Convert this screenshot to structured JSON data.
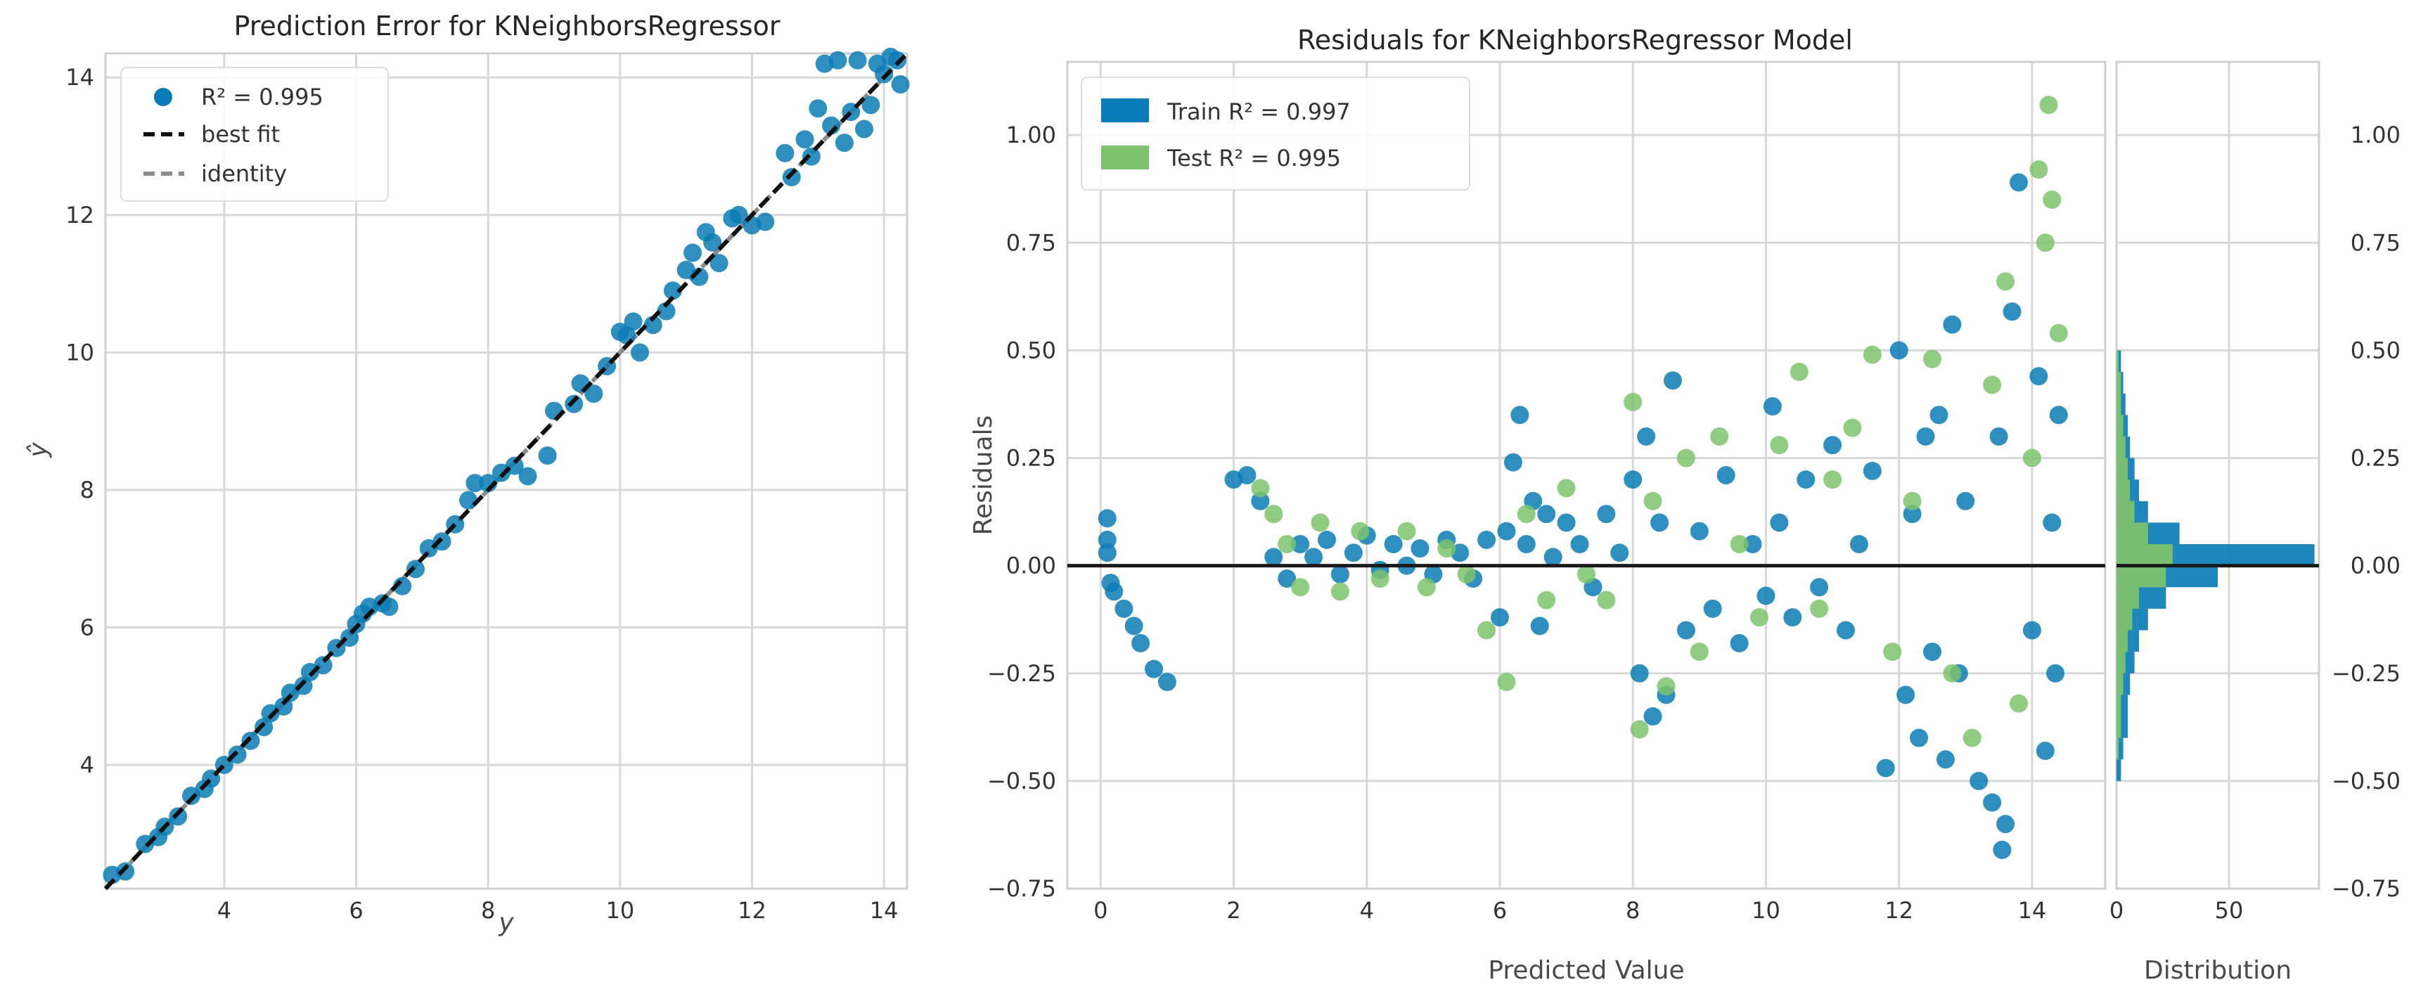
{
  "colors": {
    "train": "#0a7cb5",
    "test": "#7dc36b",
    "best_fit": "#111111",
    "identity": "#8c8c8c",
    "zero_line": "#1a1a1a"
  },
  "chart_data": [
    {
      "type": "scatter",
      "title": "Prediction Error for KNeighborsRegressor",
      "xlabel": "y",
      "ylabel": "ŷ",
      "xlim": [
        2.2,
        14.35
      ],
      "ylim": [
        2.2,
        14.35
      ],
      "xticks": [
        "4",
        "6",
        "8",
        "10",
        "12",
        "14"
      ],
      "yticks": [
        "4",
        "6",
        "8",
        "10",
        "12",
        "14"
      ],
      "legend": {
        "placement": "top-left",
        "points_label": "R² = 0.995",
        "best_fit_label": "best fit",
        "identity_label": "identity"
      },
      "r2": 0.995,
      "points": [
        [
          2.3,
          2.4
        ],
        [
          2.5,
          2.45
        ],
        [
          2.8,
          2.85
        ],
        [
          3.0,
          2.95
        ],
        [
          3.1,
          3.1
        ],
        [
          3.3,
          3.25
        ],
        [
          3.5,
          3.55
        ],
        [
          3.7,
          3.65
        ],
        [
          3.8,
          3.8
        ],
        [
          4.0,
          4.0
        ],
        [
          4.2,
          4.15
        ],
        [
          4.4,
          4.35
        ],
        [
          4.6,
          4.55
        ],
        [
          4.7,
          4.75
        ],
        [
          4.9,
          4.85
        ],
        [
          5.0,
          5.05
        ],
        [
          5.2,
          5.15
        ],
        [
          5.3,
          5.35
        ],
        [
          5.5,
          5.45
        ],
        [
          5.7,
          5.7
        ],
        [
          5.9,
          5.85
        ],
        [
          6.0,
          6.05
        ],
        [
          6.1,
          6.2
        ],
        [
          6.2,
          6.3
        ],
        [
          6.4,
          6.35
        ],
        [
          6.5,
          6.3
        ],
        [
          6.7,
          6.6
        ],
        [
          6.9,
          6.85
        ],
        [
          7.1,
          7.15
        ],
        [
          7.3,
          7.25
        ],
        [
          7.5,
          7.5
        ],
        [
          7.7,
          7.85
        ],
        [
          7.8,
          8.1
        ],
        [
          8.0,
          8.1
        ],
        [
          8.2,
          8.25
        ],
        [
          8.4,
          8.35
        ],
        [
          8.6,
          8.2
        ],
        [
          8.9,
          8.5
        ],
        [
          9.0,
          9.15
        ],
        [
          9.3,
          9.25
        ],
        [
          9.4,
          9.55
        ],
        [
          9.6,
          9.4
        ],
        [
          9.8,
          9.8
        ],
        [
          10.0,
          10.3
        ],
        [
          10.1,
          10.25
        ],
        [
          10.2,
          10.45
        ],
        [
          10.3,
          10.0
        ],
        [
          10.5,
          10.4
        ],
        [
          10.7,
          10.6
        ],
        [
          10.8,
          10.9
        ],
        [
          11.0,
          11.2
        ],
        [
          11.1,
          11.45
        ],
        [
          11.2,
          11.1
        ],
        [
          11.3,
          11.75
        ],
        [
          11.4,
          11.6
        ],
        [
          11.5,
          11.3
        ],
        [
          11.7,
          11.95
        ],
        [
          11.8,
          12.0
        ],
        [
          12.0,
          11.85
        ],
        [
          12.2,
          11.9
        ],
        [
          12.5,
          12.9
        ],
        [
          12.6,
          12.55
        ],
        [
          12.8,
          13.1
        ],
        [
          12.9,
          12.85
        ],
        [
          13.0,
          13.55
        ],
        [
          13.1,
          14.2
        ],
        [
          13.2,
          13.3
        ],
        [
          13.3,
          14.25
        ],
        [
          13.4,
          13.05
        ],
        [
          13.5,
          13.5
        ],
        [
          13.6,
          14.25
        ],
        [
          13.7,
          13.25
        ],
        [
          13.8,
          13.6
        ],
        [
          13.9,
          14.2
        ],
        [
          14.0,
          14.05
        ],
        [
          14.1,
          14.3
        ],
        [
          14.2,
          14.25
        ],
        [
          14.25,
          13.9
        ]
      ]
    },
    {
      "type": "scatter",
      "title": "Residuals for KNeighborsRegressor Model",
      "xlabel": "Predicted Value",
      "ylabel": "Residuals",
      "xlim": [
        -0.5,
        15.1
      ],
      "ylim": [
        -0.75,
        1.17
      ],
      "xticks": [
        "0",
        "2",
        "4",
        "6",
        "8",
        "10",
        "12",
        "14"
      ],
      "yticks": [
        "1.00",
        "0.75",
        "0.50",
        "0.25",
        "0.00",
        "−0.25",
        "−0.50",
        "−0.75"
      ],
      "legend": {
        "placement": "top-left",
        "train_label": "Train R² = 0.997",
        "test_label": "Test R² = 0.995"
      },
      "series": [
        {
          "name": "Train",
          "r2": 0.997,
          "points": [
            [
              0.1,
              0.11
            ],
            [
              0.1,
              0.06
            ],
            [
              0.1,
              0.03
            ],
            [
              0.15,
              -0.04
            ],
            [
              0.2,
              -0.06
            ],
            [
              0.35,
              -0.1
            ],
            [
              0.5,
              -0.14
            ],
            [
              0.6,
              -0.18
            ],
            [
              0.8,
              -0.24
            ],
            [
              1.0,
              -0.27
            ],
            [
              2.0,
              0.2
            ],
            [
              2.2,
              0.21
            ],
            [
              2.4,
              0.15
            ],
            [
              2.6,
              0.02
            ],
            [
              2.8,
              -0.03
            ],
            [
              3.0,
              0.05
            ],
            [
              3.2,
              0.02
            ],
            [
              3.4,
              0.06
            ],
            [
              3.6,
              -0.02
            ],
            [
              3.8,
              0.03
            ],
            [
              4.0,
              0.07
            ],
            [
              4.2,
              -0.01
            ],
            [
              4.4,
              0.05
            ],
            [
              4.6,
              0.0
            ],
            [
              4.8,
              0.04
            ],
            [
              5.0,
              -0.02
            ],
            [
              5.2,
              0.06
            ],
            [
              5.4,
              0.03
            ],
            [
              5.6,
              -0.03
            ],
            [
              5.8,
              0.06
            ],
            [
              6.0,
              -0.12
            ],
            [
              6.1,
              0.08
            ],
            [
              6.2,
              0.24
            ],
            [
              6.3,
              0.35
            ],
            [
              6.4,
              0.05
            ],
            [
              6.5,
              0.15
            ],
            [
              6.6,
              -0.14
            ],
            [
              6.7,
              0.12
            ],
            [
              6.8,
              0.02
            ],
            [
              7.0,
              0.1
            ],
            [
              7.2,
              0.05
            ],
            [
              7.4,
              -0.05
            ],
            [
              7.6,
              0.12
            ],
            [
              7.8,
              0.03
            ],
            [
              8.0,
              0.2
            ],
            [
              8.1,
              -0.25
            ],
            [
              8.2,
              0.3
            ],
            [
              8.3,
              -0.35
            ],
            [
              8.4,
              0.1
            ],
            [
              8.5,
              -0.3
            ],
            [
              8.6,
              0.43
            ],
            [
              8.8,
              -0.15
            ],
            [
              9.0,
              0.08
            ],
            [
              9.2,
              -0.1
            ],
            [
              9.4,
              0.21
            ],
            [
              9.6,
              -0.18
            ],
            [
              9.8,
              0.05
            ],
            [
              10.0,
              -0.07
            ],
            [
              10.1,
              0.37
            ],
            [
              10.2,
              0.1
            ],
            [
              10.4,
              -0.12
            ],
            [
              10.6,
              0.2
            ],
            [
              10.8,
              -0.05
            ],
            [
              11.0,
              0.28
            ],
            [
              11.2,
              -0.15
            ],
            [
              11.4,
              0.05
            ],
            [
              11.6,
              0.22
            ],
            [
              11.8,
              -0.47
            ],
            [
              12.0,
              0.5
            ],
            [
              12.1,
              -0.3
            ],
            [
              12.2,
              0.12
            ],
            [
              12.3,
              -0.4
            ],
            [
              12.4,
              0.3
            ],
            [
              12.5,
              -0.2
            ],
            [
              12.6,
              0.35
            ],
            [
              12.7,
              -0.45
            ],
            [
              12.8,
              0.56
            ],
            [
              12.9,
              -0.25
            ],
            [
              13.0,
              0.15
            ],
            [
              13.2,
              -0.5
            ],
            [
              13.4,
              -0.55
            ],
            [
              13.5,
              0.3
            ],
            [
              13.55,
              -0.66
            ],
            [
              13.6,
              -0.6
            ],
            [
              13.7,
              0.59
            ],
            [
              13.8,
              0.89
            ],
            [
              14.0,
              -0.15
            ],
            [
              14.1,
              0.44
            ],
            [
              14.2,
              -0.43
            ],
            [
              14.3,
              0.1
            ],
            [
              14.35,
              -0.25
            ],
            [
              14.4,
              0.35
            ]
          ]
        },
        {
          "name": "Test",
          "r2": 0.995,
          "points": [
            [
              2.4,
              0.18
            ],
            [
              2.6,
              0.12
            ],
            [
              2.8,
              0.05
            ],
            [
              3.0,
              -0.05
            ],
            [
              3.3,
              0.1
            ],
            [
              3.6,
              -0.06
            ],
            [
              3.9,
              0.08
            ],
            [
              4.2,
              -0.03
            ],
            [
              4.6,
              0.08
            ],
            [
              4.9,
              -0.05
            ],
            [
              5.2,
              0.04
            ],
            [
              5.5,
              -0.02
            ],
            [
              5.8,
              -0.15
            ],
            [
              6.1,
              -0.27
            ],
            [
              6.4,
              0.12
            ],
            [
              6.7,
              -0.08
            ],
            [
              7.0,
              0.18
            ],
            [
              7.3,
              -0.02
            ],
            [
              7.6,
              -0.08
            ],
            [
              8.0,
              0.38
            ],
            [
              8.1,
              -0.38
            ],
            [
              8.3,
              0.15
            ],
            [
              8.5,
              -0.28
            ],
            [
              8.8,
              0.25
            ],
            [
              9.0,
              -0.2
            ],
            [
              9.3,
              0.3
            ],
            [
              9.6,
              0.05
            ],
            [
              9.9,
              -0.12
            ],
            [
              10.2,
              0.28
            ],
            [
              10.5,
              0.45
            ],
            [
              10.8,
              -0.1
            ],
            [
              11.0,
              0.2
            ],
            [
              11.3,
              0.32
            ],
            [
              11.6,
              0.49
            ],
            [
              11.9,
              -0.2
            ],
            [
              12.2,
              0.15
            ],
            [
              12.5,
              0.48
            ],
            [
              12.8,
              -0.25
            ],
            [
              13.1,
              -0.4
            ],
            [
              13.4,
              0.42
            ],
            [
              13.6,
              0.66
            ],
            [
              13.8,
              -0.32
            ],
            [
              14.0,
              0.25
            ],
            [
              14.1,
              0.92
            ],
            [
              14.2,
              0.75
            ],
            [
              14.25,
              1.07
            ],
            [
              14.3,
              0.85
            ],
            [
              14.4,
              0.54
            ]
          ]
        }
      ]
    },
    {
      "type": "bar",
      "title": "",
      "xlabel": "Distribution",
      "ylabel": "",
      "orientation": "horizontal",
      "xlim": [
        0,
        90
      ],
      "xticks": [
        "0",
        "50"
      ],
      "bin_edges": [
        -0.5,
        -0.45,
        -0.4,
        -0.35,
        -0.3,
        -0.25,
        -0.2,
        -0.15,
        -0.1,
        -0.05,
        0.0,
        0.05,
        0.1,
        0.15,
        0.2,
        0.25,
        0.3,
        0.35,
        0.4,
        0.45,
        0.5
      ],
      "series": [
        {
          "name": "Train",
          "values": [
            2,
            3,
            5,
            5,
            6,
            8,
            10,
            14,
            22,
            45,
            88,
            28,
            14,
            10,
            8,
            6,
            5,
            4,
            3,
            2
          ]
        },
        {
          "name": "Test",
          "values": [
            0,
            1,
            2,
            2,
            3,
            4,
            5,
            7,
            10,
            22,
            25,
            14,
            8,
            6,
            5,
            4,
            3,
            2,
            2,
            1
          ]
        }
      ]
    }
  ]
}
